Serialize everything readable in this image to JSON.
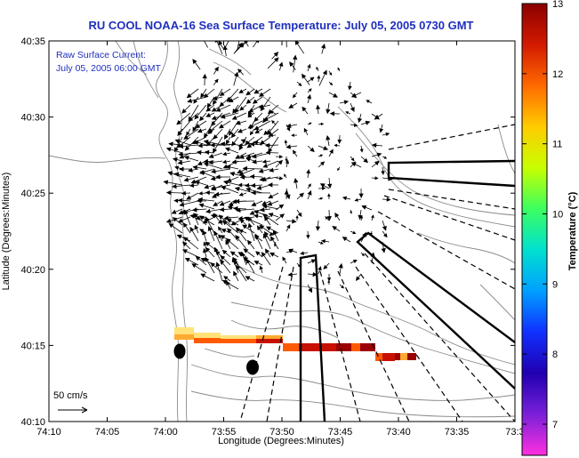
{
  "title": "RU COOL  NOAA-16  Sea Surface Temperature:  July 05, 2005 0730 GMT",
  "annotation": {
    "line1": "Raw Surface Current:",
    "line2": "July 05, 2005 06:00 GMT"
  },
  "scale_label": "50 cm/s",
  "x_axis": {
    "label": "Longitude (Degrees:Minutes)",
    "ticks": [
      "74:10",
      "74:05",
      "74:00",
      "73:55",
      "73:50",
      "73:45",
      "73:40",
      "73:35",
      "73:3"
    ]
  },
  "y_axis": {
    "label": "Latitude (Degrees:Minutes)",
    "ticks": [
      "40:35",
      "40:30",
      "40:25",
      "40:20",
      "40:15",
      "40:10"
    ]
  },
  "colorbar": {
    "label": "Temperature (°C)",
    "ticks": [
      "13",
      "12",
      "11",
      "10",
      "9",
      "8",
      "7"
    ],
    "colors": [
      "#8b0000",
      "#d21a00",
      "#ff6a00",
      "#ffcc00",
      "#c8ff00",
      "#3cff60",
      "#00e0d0",
      "#00a0ff",
      "#1030ff",
      "#2000b0",
      "#7a20d8",
      "#ff30e0"
    ]
  },
  "sst_band_colors": [
    "#ffe37a",
    "#ffaa30",
    "#ff5a00",
    "#c81000",
    "#9b0000"
  ]
}
